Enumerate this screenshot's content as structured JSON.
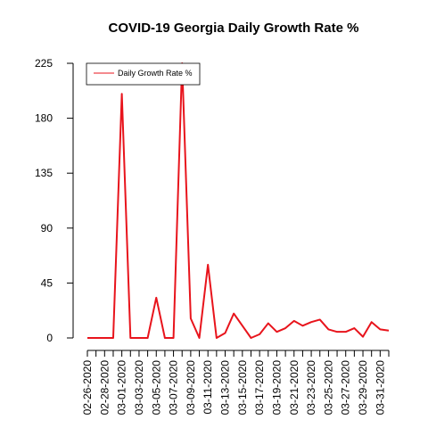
{
  "chart_data": {
    "type": "line",
    "title": "COVID-19 Georgia Daily Growth Rate %",
    "xlabel": "",
    "ylabel": "",
    "ylim": [
      0,
      225
    ],
    "y_ticks": [
      0,
      45,
      90,
      135,
      180,
      225
    ],
    "x_ticks": [
      "02-26-2020",
      "02-28-2020",
      "03-01-2020",
      "03-03-2020",
      "03-05-2020",
      "03-07-2020",
      "03-09-2020",
      "03-11-2020",
      "03-13-2020",
      "03-15-2020",
      "03-17-2020",
      "03-19-2020",
      "03-21-2020",
      "03-23-2020",
      "03-25-2020",
      "03-27-2020",
      "03-29-2020",
      "03-31-2020"
    ],
    "grid": false,
    "legend_position": "top-left",
    "series": [
      {
        "name": "Daily Growth Rate %",
        "color": "#e8141c",
        "x": [
          "02-26-2020",
          "02-27-2020",
          "02-28-2020",
          "02-29-2020",
          "03-01-2020",
          "03-02-2020",
          "03-03-2020",
          "03-04-2020",
          "03-05-2020",
          "03-06-2020",
          "03-07-2020",
          "03-08-2020",
          "03-09-2020",
          "03-10-2020",
          "03-11-2020",
          "03-12-2020",
          "03-13-2020",
          "03-14-2020",
          "03-15-2020",
          "03-16-2020",
          "03-17-2020",
          "03-18-2020",
          "03-19-2020",
          "03-20-2020",
          "03-21-2020",
          "03-22-2020",
          "03-23-2020",
          "03-24-2020",
          "03-25-2020",
          "03-26-2020",
          "03-27-2020",
          "03-28-2020",
          "03-29-2020",
          "03-30-2020",
          "03-31-2020",
          "04-01-2020"
        ],
        "values": [
          0,
          0,
          0,
          0,
          200,
          0,
          0,
          0,
          33,
          0,
          0,
          225,
          16,
          0,
          60,
          0,
          4,
          20,
          10,
          0,
          3,
          12,
          5,
          8,
          14,
          10,
          13,
          15,
          7,
          5,
          5,
          8,
          1,
          13,
          7,
          6
        ]
      }
    ]
  }
}
